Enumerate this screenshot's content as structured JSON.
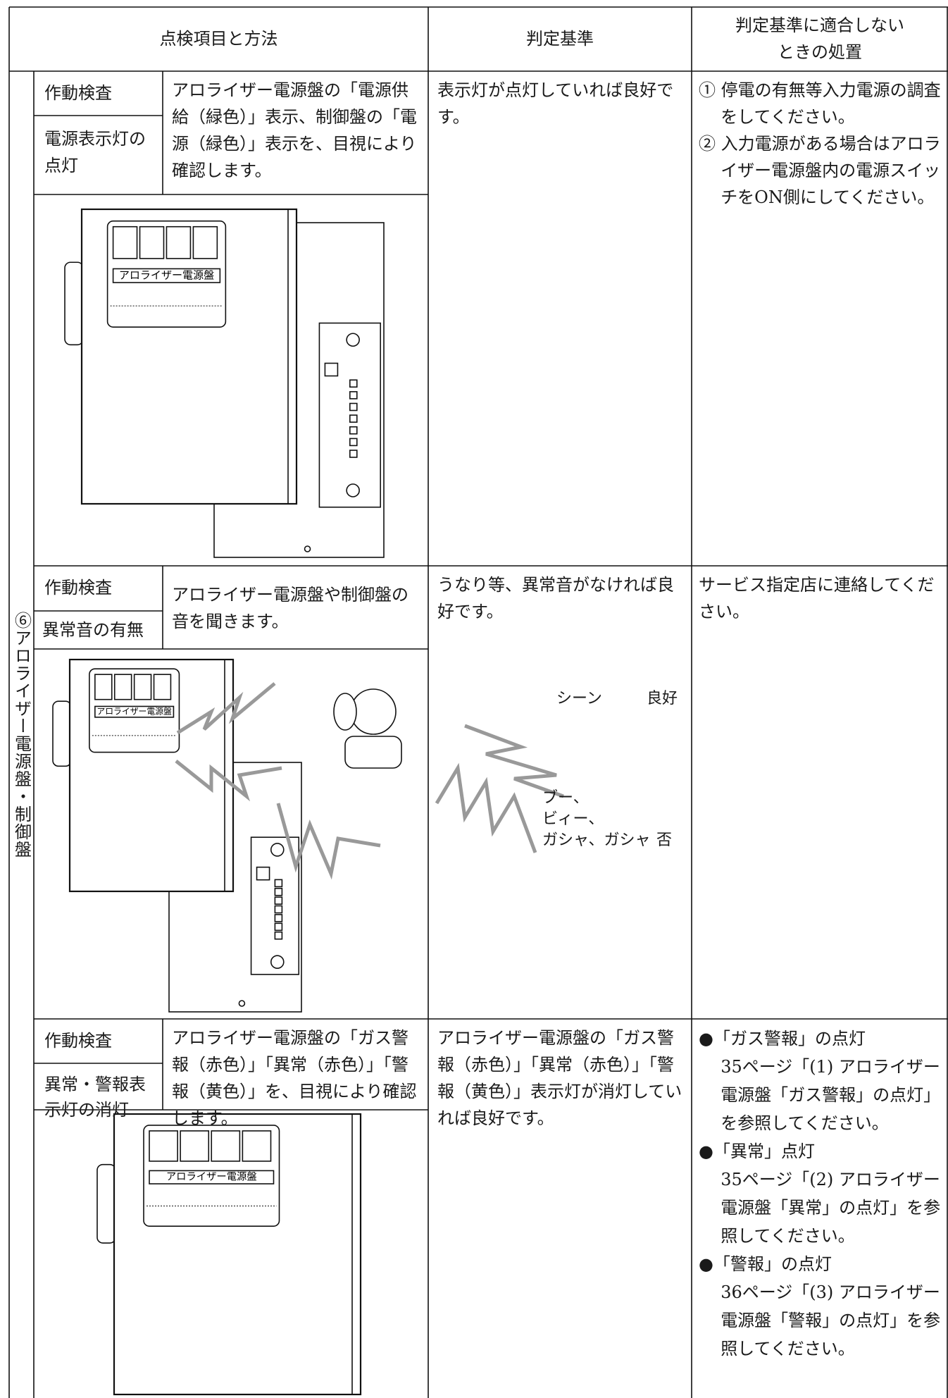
{
  "header": {
    "columns": [
      "点検項目と方法",
      "判定基準",
      [
        "判定基準に適合しない",
        "ときの処置"
      ]
    ]
  },
  "section_label": "⑥アロライザー電源盤・制御盤",
  "figure_panel_label": "アロライザー電源盤",
  "rows": [
    {
      "check": "作動検査",
      "item": "電源表示灯の点灯",
      "method": "アロライザー電源盤の「電源供給（緑色）」表示、制御盤の「電源（緑色）」表示を、目視により確認します。",
      "criteria": "表示灯が点灯していれば良好です。",
      "actions": [
        {
          "marker": "①",
          "text": "停電の有無等入力電源の調査をしてください。"
        },
        {
          "marker": "②",
          "text": "入力電源がある場合はアロライザー電源盤内の電源スイッチをON側にしてください。"
        }
      ]
    },
    {
      "check": "作動検査",
      "item": "異常音の有無",
      "method": "アロライザー電源盤や制御盤の音を聞きます。",
      "criteria": "うなり等、異常音がなければ良好です。",
      "figure": {
        "sound_good": "シーン",
        "judge_good": "良好",
        "sound_bad": [
          "ブー、",
          "ビィー、",
          "ガシャ、ガシャ"
        ],
        "judge_bad": "否"
      },
      "actions": [
        {
          "text": "サービス指定店に連絡してください。"
        }
      ]
    },
    {
      "check": "作動検査",
      "item": "異常・警報表示灯の消灯",
      "method": "アロライザー電源盤の「ガス警報（赤色）」「異常（赤色）」「警報（黄色）」を、目視により確認します。",
      "criteria": "アロライザー電源盤の「ガス警報（赤色）」「異常（赤色）」「警報（黄色）」表示灯が消灯していれば良好です。",
      "actions": [
        {
          "marker": "●",
          "title": "「ガス警報」の点灯",
          "text": "35ページ「(1) アロライザー電源盤「ガス警報」の点灯」を参照してください。"
        },
        {
          "marker": "●",
          "title": "「異常」点灯",
          "text": "35ページ「(2) アロライザー電源盤「異常」の点灯」を参照してください。"
        },
        {
          "marker": "●",
          "title": "「警報」の点灯",
          "text": "36ページ「(3) アロライザー電源盤「警報」の点灯」を参照してください。"
        }
      ]
    }
  ]
}
